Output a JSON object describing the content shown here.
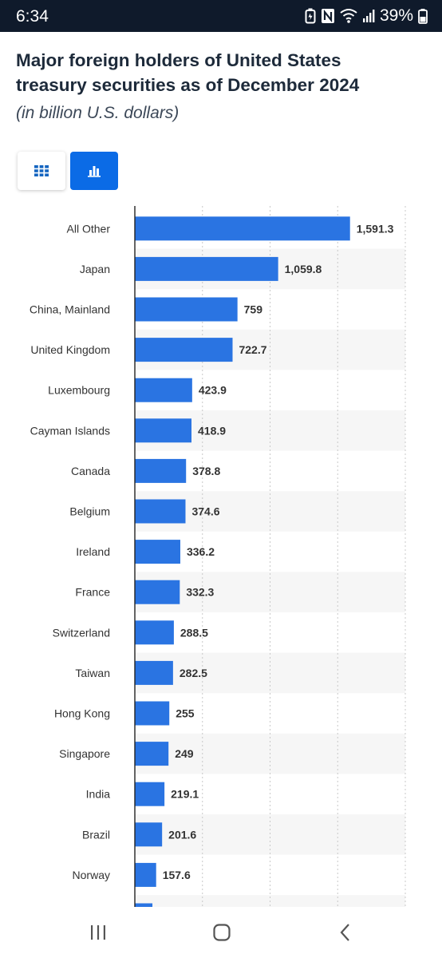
{
  "status_bar": {
    "time": "6:34",
    "battery": "39%",
    "icons": [
      "battery-saver-icon",
      "nfc-icon",
      "wifi-icon",
      "signal-icon",
      "battery-icon"
    ]
  },
  "header": {
    "title": "Major foreign holders of United States treasury securities as of December 2024",
    "subtitle": "(in billion U.S. dollars)"
  },
  "view_toggle": {
    "table_icon": "grid-table-icon",
    "chart_icon": "bar-chart-icon",
    "active": "chart"
  },
  "colors": {
    "bar": "#2a74e2",
    "accent": "#0b6be6",
    "stripe": "#f6f6f6",
    "status_bar_bg": "#0f1a2b"
  },
  "chart_data": {
    "type": "bar",
    "orientation": "horizontal",
    "title": "Major foreign holders of United States treasury securities as of December 2024",
    "subtitle": "(in billion U.S. dollars)",
    "categories": [
      "All Other",
      "Japan",
      "China, Mainland",
      "United Kingdom",
      "Luxembourg",
      "Cayman Islands",
      "Canada",
      "Belgium",
      "Ireland",
      "France",
      "Switzerland",
      "Taiwan",
      "Hong Kong",
      "Singapore",
      "India",
      "Brazil",
      "Norway"
    ],
    "values": [
      1591.3,
      1059.8,
      759,
      722.7,
      423.9,
      418.9,
      378.8,
      374.6,
      336.2,
      332.3,
      288.5,
      282.5,
      255,
      249,
      219.1,
      201.6,
      157.6
    ],
    "value_labels": [
      "1,591.3",
      "1,059.8",
      "759",
      "722.7",
      "423.9",
      "418.9",
      "378.8",
      "374.6",
      "336.2",
      "332.3",
      "288.5",
      "282.5",
      "255",
      "249",
      "219.1",
      "201.6",
      "157.6"
    ],
    "partially_visible_next_value": 130,
    "xlim": [
      0,
      2000
    ],
    "grid": true
  },
  "nav_bar": {
    "icons": [
      "recent-apps-icon",
      "home-icon",
      "back-icon"
    ]
  }
}
